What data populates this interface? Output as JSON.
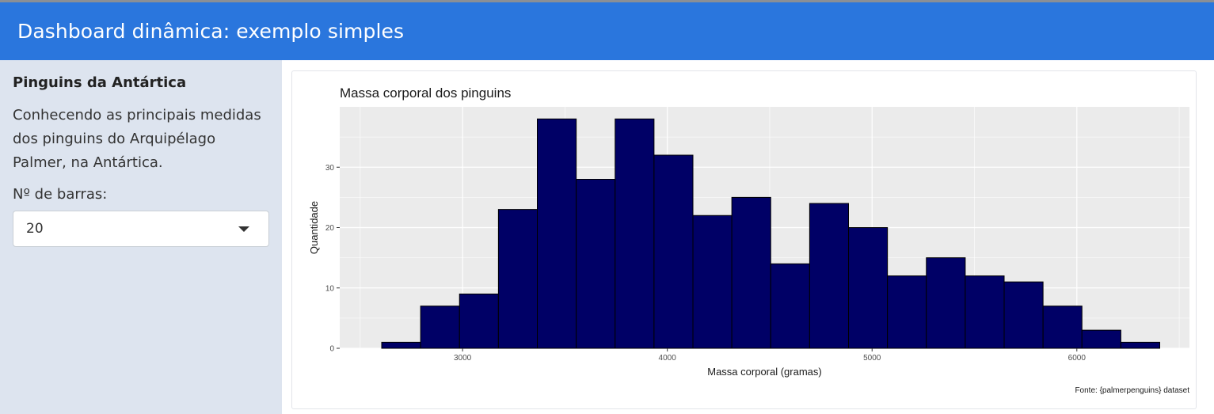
{
  "header": {
    "title": "Dashboard dinâmica: exemplo simples"
  },
  "sidebar": {
    "heading": "Pinguins da Antártica",
    "description": "Conhecendo as principais medidas dos pinguins do Arquipélago Palmer, na Antártica.",
    "bins_label": "Nº de barras:",
    "bins_value": "20"
  },
  "chart_data": {
    "type": "bar",
    "title": "Massa corporal dos pinguins",
    "xlabel": "Massa corporal (gramas)",
    "ylabel": "Quantidade",
    "caption": "Fonte: {palmerpenguins} dataset",
    "x_ticks": [
      "3000",
      "4000",
      "5000",
      "6000"
    ],
    "y_ticks": [
      "0",
      "10",
      "20",
      "30"
    ],
    "xlim": [
      2400,
      6550
    ],
    "ylim": [
      0,
      40
    ],
    "bin_start": 2605,
    "bin_width": 190,
    "values": [
      1,
      7,
      9,
      23,
      38,
      28,
      38,
      32,
      22,
      25,
      14,
      24,
      20,
      12,
      15,
      12,
      11,
      7,
      3,
      1
    ],
    "fill_color": "#000066",
    "panel_color": "#ebebeb",
    "grid": true
  }
}
